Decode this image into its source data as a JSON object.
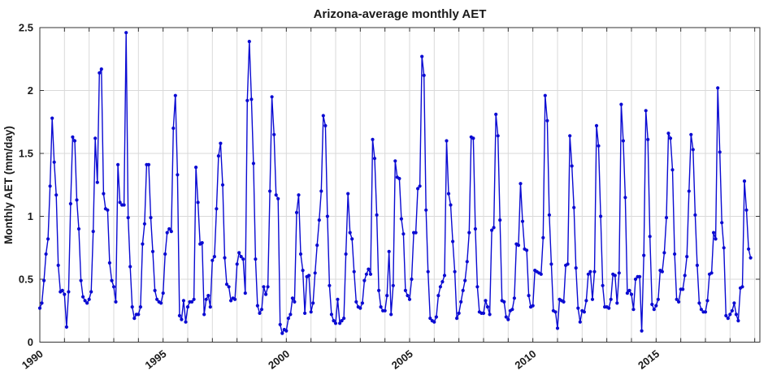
{
  "chart_data": {
    "type": "line",
    "title": "Arizona-average monthly AET",
    "xlabel": "",
    "ylabel": "Monthly AET (mm/day)",
    "ylim": [
      0,
      2.5
    ],
    "y_ticks": [
      0,
      0.5,
      1,
      1.5,
      2,
      2.5
    ],
    "y_tick_labels": [
      "0",
      "0.5",
      "1",
      "1.5",
      "2",
      "2.5"
    ],
    "x_minor_tick_years_start": 1990,
    "x_minor_tick_years_end": 2019,
    "x_labeled_ticks": [
      1990,
      1995,
      2000,
      2005,
      2010,
      2015
    ],
    "grid": "on",
    "legend": "none",
    "line_color": "#0a0ad2",
    "marker": "filled-circle",
    "grid_color": "#d9d9d9",
    "axis_color": "#333333",
    "series": [
      {
        "name": "Arizona-average monthly AET",
        "start_month": "1990-01",
        "end_month": "2018-11",
        "years": [
          {
            "year": 1990,
            "values": [
              0.27,
              0.31,
              0.49,
              0.7,
              0.82,
              1.24,
              1.78,
              1.43,
              1.17,
              0.61,
              0.4,
              0.41
            ]
          },
          {
            "year": 1991,
            "values": [
              0.38,
              0.12,
              0.4,
              1.1,
              1.63,
              1.6,
              1.13,
              0.9,
              0.49,
              0.36,
              0.33,
              0.31
            ]
          },
          {
            "year": 1992,
            "values": [
              0.34,
              0.4,
              0.88,
              1.62,
              1.27,
              2.14,
              2.17,
              1.18,
              1.06,
              1.05,
              0.63,
              0.49
            ]
          },
          {
            "year": 1993,
            "values": [
              0.44,
              0.32,
              1.41,
              1.11,
              1.09,
              1.09,
              2.46,
              0.99,
              0.6,
              0.28,
              0.19,
              0.22
            ]
          },
          {
            "year": 1994,
            "values": [
              0.22,
              0.28,
              0.78,
              0.94,
              1.41,
              1.41,
              0.99,
              0.72,
              0.41,
              0.34,
              0.32,
              0.31
            ]
          },
          {
            "year": 1995,
            "values": [
              0.39,
              0.7,
              0.87,
              0.9,
              0.88,
              1.7,
              1.96,
              1.33,
              0.21,
              0.18,
              0.33,
              0.16
            ]
          },
          {
            "year": 1996,
            "values": [
              0.28,
              0.32,
              0.32,
              0.34,
              1.39,
              1.11,
              0.78,
              0.79,
              0.22,
              0.34,
              0.37,
              0.28
            ]
          },
          {
            "year": 1997,
            "values": [
              0.65,
              0.68,
              1.06,
              1.48,
              1.58,
              1.25,
              0.67,
              0.46,
              0.44,
              0.33,
              0.35,
              0.34
            ]
          },
          {
            "year": 1998,
            "values": [
              0.62,
              0.71,
              0.68,
              0.66,
              0.39,
              1.92,
              2.39,
              1.93,
              1.42,
              0.66,
              0.29,
              0.23
            ]
          },
          {
            "year": 1999,
            "values": [
              0.26,
              0.44,
              0.38,
              0.44,
              1.2,
              1.95,
              1.65,
              1.17,
              1.14,
              0.14,
              0.07,
              0.1
            ]
          },
          {
            "year": 2000,
            "values": [
              0.09,
              0.19,
              0.22,
              0.35,
              0.32,
              1.03,
              1.17,
              0.7,
              0.57,
              0.23,
              0.52,
              0.53
            ]
          },
          {
            "year": 2001,
            "values": [
              0.24,
              0.31,
              0.55,
              0.77,
              0.97,
              1.2,
              1.8,
              1.72,
              1.0,
              0.45,
              0.22,
              0.17
            ]
          },
          {
            "year": 2002,
            "values": [
              0.15,
              0.34,
              0.15,
              0.17,
              0.19,
              0.7,
              1.18,
              0.87,
              0.82,
              0.56,
              0.32,
              0.28
            ]
          },
          {
            "year": 2003,
            "values": [
              0.27,
              0.31,
              0.49,
              0.54,
              0.58,
              0.54,
              1.61,
              1.46,
              1.01,
              0.41,
              0.28,
              0.25
            ]
          },
          {
            "year": 2004,
            "values": [
              0.25,
              0.37,
              0.72,
              0.22,
              0.45,
              1.44,
              1.31,
              1.3,
              0.98,
              0.86,
              0.41,
              0.37
            ]
          },
          {
            "year": 2005,
            "values": [
              0.34,
              0.5,
              0.87,
              0.87,
              1.22,
              1.24,
              2.27,
              2.12,
              1.05,
              0.56,
              0.19,
              0.17
            ]
          },
          {
            "year": 2006,
            "values": [
              0.16,
              0.2,
              0.37,
              0.44,
              0.48,
              0.53,
              1.6,
              1.18,
              1.09,
              0.8,
              0.56,
              0.19
            ]
          },
          {
            "year": 2007,
            "values": [
              0.23,
              0.32,
              0.41,
              0.49,
              0.64,
              0.87,
              1.63,
              1.62,
              0.9,
              0.44,
              0.24,
              0.23
            ]
          },
          {
            "year": 2008,
            "values": [
              0.23,
              0.33,
              0.28,
              0.22,
              0.89,
              0.91,
              1.81,
              1.64,
              0.97,
              0.33,
              0.32,
              0.2
            ]
          },
          {
            "year": 2009,
            "values": [
              0.18,
              0.25,
              0.26,
              0.35,
              0.78,
              0.77,
              1.26,
              0.96,
              0.74,
              0.73,
              0.37,
              0.28
            ]
          },
          {
            "year": 2010,
            "values": [
              0.29,
              0.57,
              0.56,
              0.55,
              0.54,
              0.83,
              1.96,
              1.76,
              1.01,
              0.62,
              0.25,
              0.24
            ]
          },
          {
            "year": 2011,
            "values": [
              0.11,
              0.34,
              0.33,
              0.32,
              0.61,
              0.62,
              1.64,
              1.4,
              1.07,
              0.59,
              0.27,
              0.16
            ]
          },
          {
            "year": 2012,
            "values": [
              0.25,
              0.24,
              0.33,
              0.54,
              0.56,
              0.34,
              0.56,
              1.72,
              1.56,
              1.0,
              0.45,
              0.28
            ]
          },
          {
            "year": 2013,
            "values": [
              0.28,
              0.27,
              0.34,
              0.54,
              0.53,
              0.31,
              0.55,
              1.89,
              1.6,
              1.15,
              0.39,
              0.41
            ]
          },
          {
            "year": 2014,
            "values": [
              0.38,
              0.26,
              0.5,
              0.52,
              0.52,
              0.09,
              0.69,
              1.84,
              1.61,
              0.84,
              0.3,
              0.26
            ]
          },
          {
            "year": 2015,
            "values": [
              0.29,
              0.34,
              0.57,
              0.56,
              0.71,
              0.99,
              1.66,
              1.62,
              1.37,
              0.7,
              0.34,
              0.32
            ]
          },
          {
            "year": 2016,
            "values": [
              0.42,
              0.42,
              0.53,
              0.68,
              1.2,
              1.65,
              1.53,
              1.01,
              0.61,
              0.31,
              0.26,
              0.24
            ]
          },
          {
            "year": 2017,
            "values": [
              0.24,
              0.33,
              0.54,
              0.55,
              0.87,
              0.82,
              2.02,
              1.51,
              0.95,
              0.75,
              0.21,
              0.19
            ]
          },
          {
            "year": 2018,
            "values": [
              0.22,
              0.25,
              0.31,
              0.22,
              0.17,
              0.43,
              0.44,
              1.28,
              1.05,
              0.74,
              0.67
            ]
          }
        ]
      }
    ]
  }
}
